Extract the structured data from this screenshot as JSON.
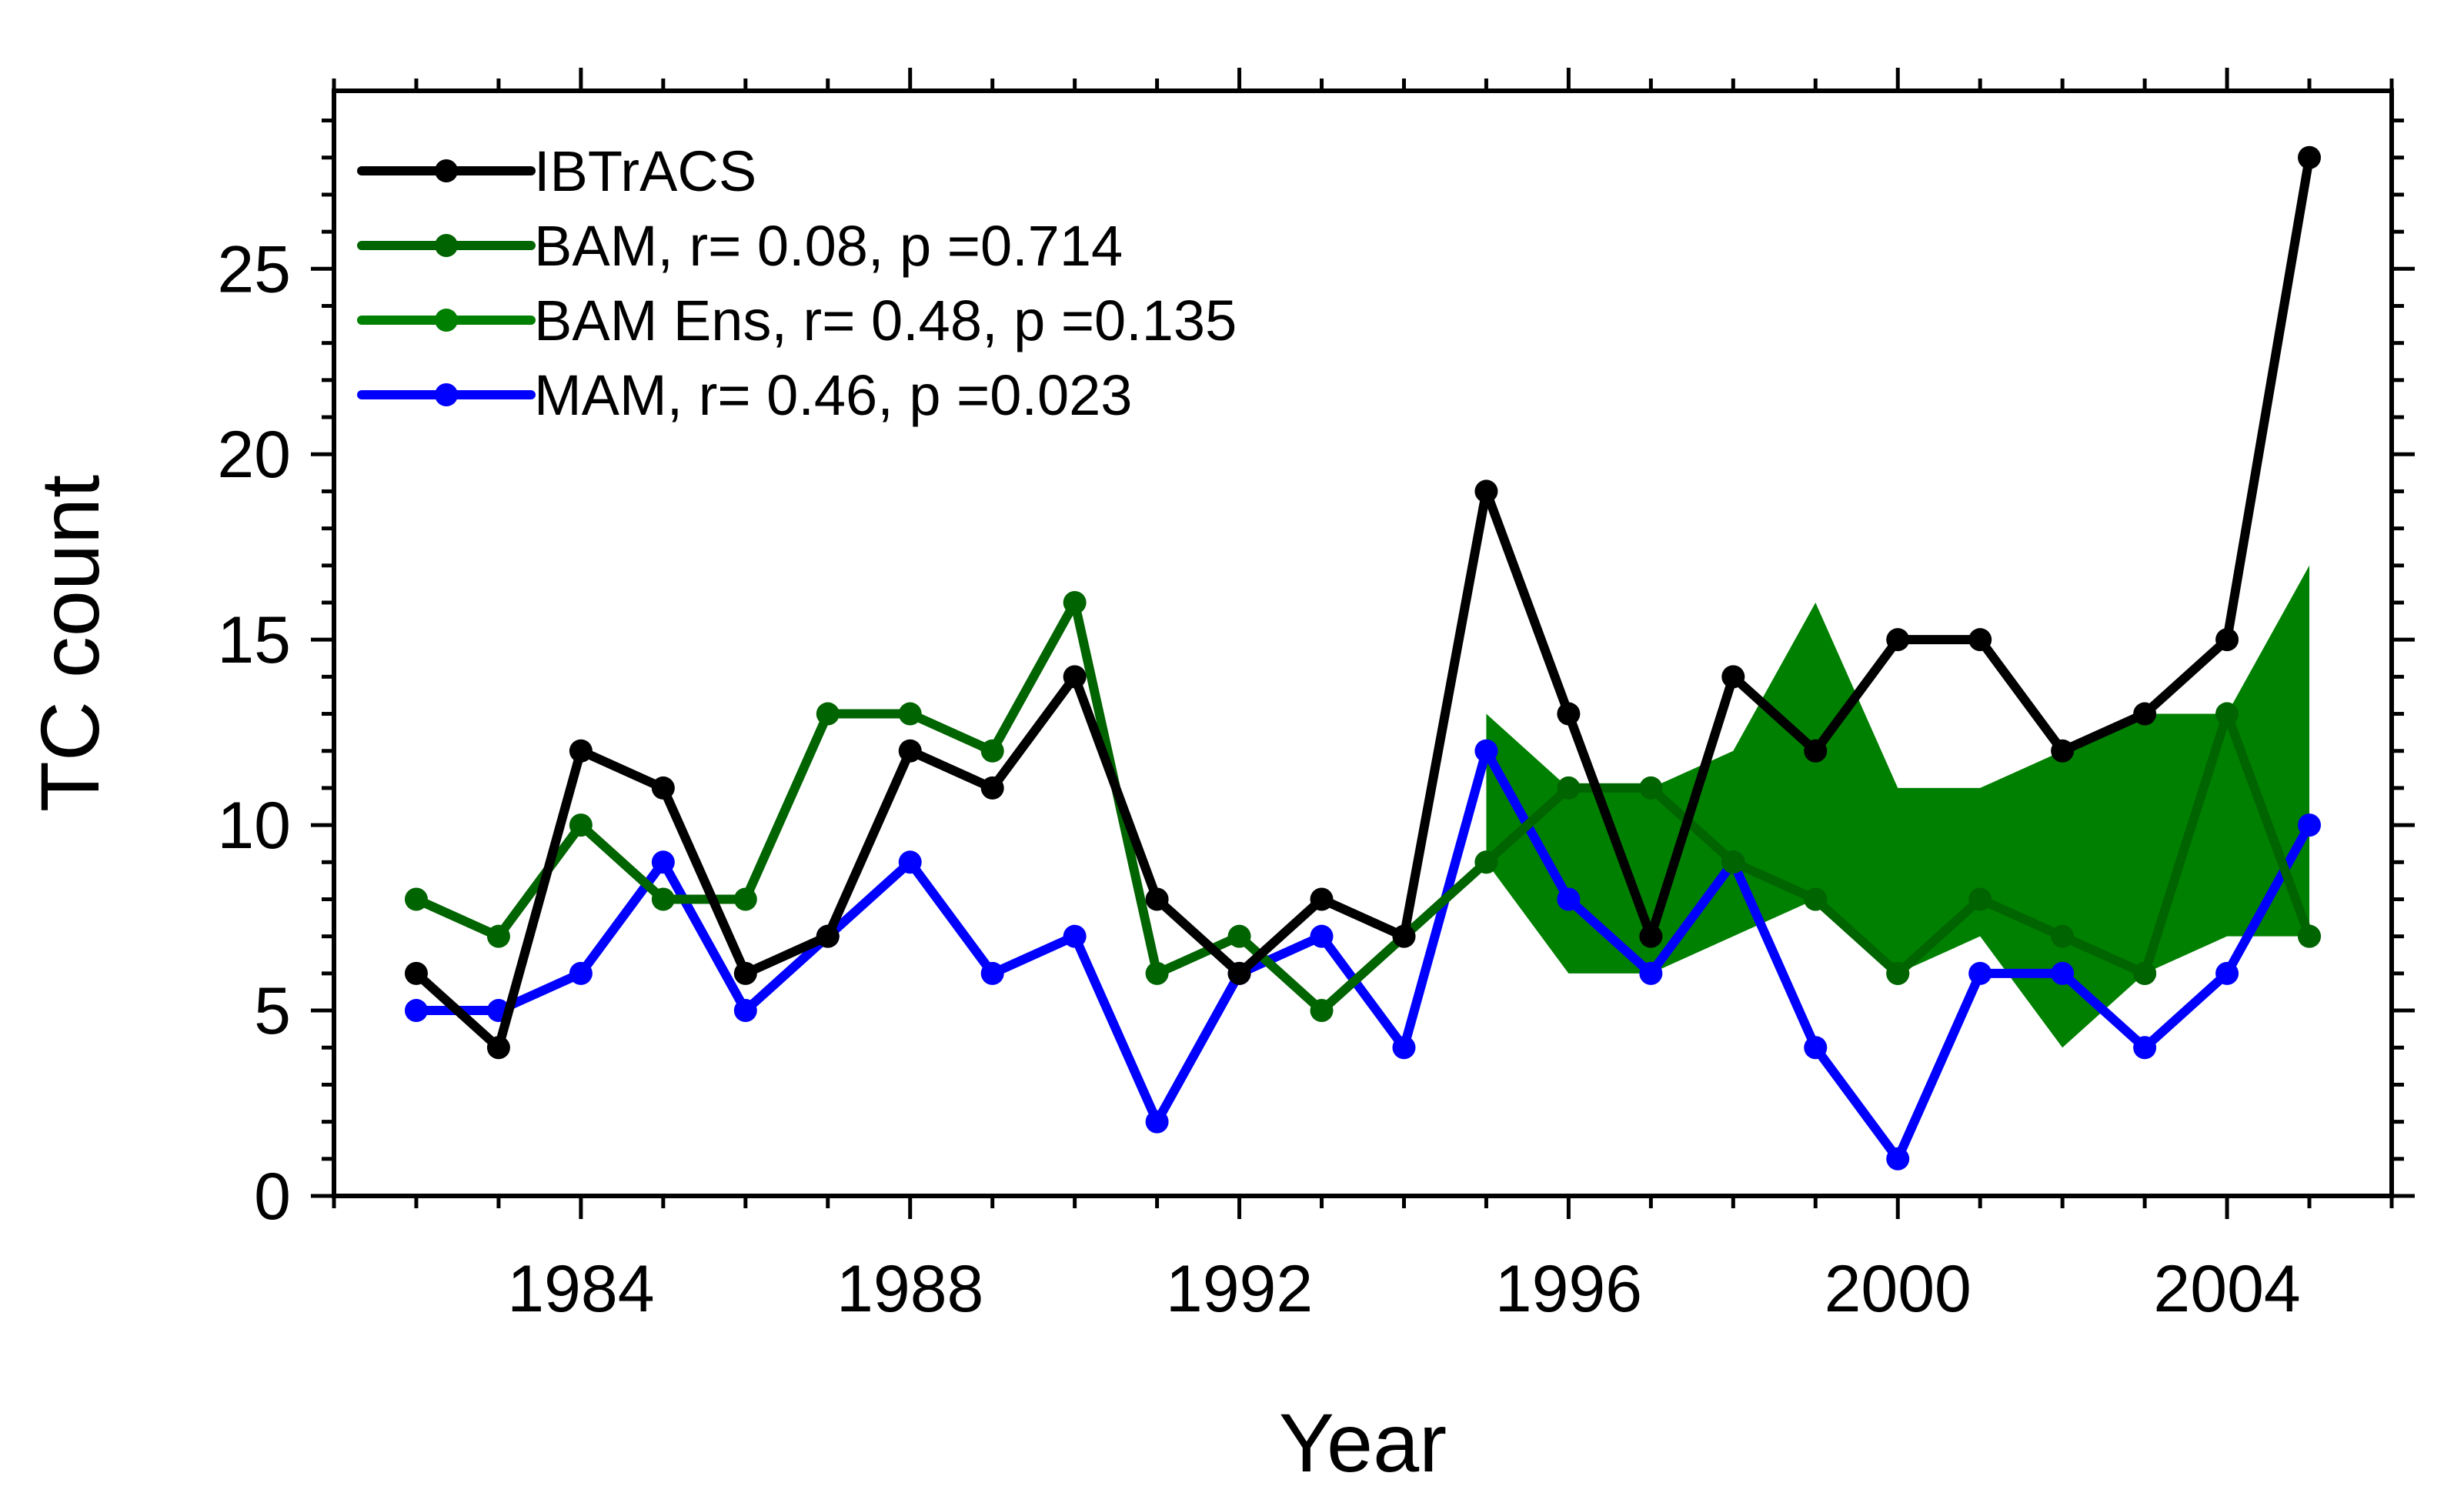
{
  "chart_data": {
    "type": "line",
    "xlabel": "Year",
    "ylabel": "TC count",
    "xlim": [
      1981,
      2006
    ],
    "ylim": [
      0,
      29.8
    ],
    "x_ticks": [
      1984,
      1988,
      1992,
      1996,
      2000,
      2004
    ],
    "y_ticks": [
      0,
      5,
      10,
      15,
      20,
      25
    ],
    "legend_position": "top-left",
    "colors": {
      "IBTrACS": "#000000",
      "BAM": "#006400",
      "BAM Ens": "#008000",
      "MAM": "#0000ff",
      "spread_fill": "#008000"
    },
    "series": [
      {
        "name": "IBTrACS",
        "label": "IBTrACS",
        "x": [
          1982,
          1983,
          1984,
          1985,
          1986,
          1987,
          1988,
          1989,
          1990,
          1991,
          1992,
          1993,
          1994,
          1995,
          1996,
          1997,
          1998,
          1999,
          2000,
          2001,
          2002,
          2003,
          2004,
          2005
        ],
        "values": [
          6,
          4,
          12,
          11,
          6,
          7,
          12,
          11,
          14,
          8,
          6,
          8,
          7,
          19,
          13,
          7,
          14,
          12,
          15,
          15,
          12,
          13,
          15,
          28
        ]
      },
      {
        "name": "BAM",
        "label": "BAM, r= 0.08, p =0.714",
        "x": [
          1982,
          1983,
          1984,
          1985,
          1986,
          1987,
          1988,
          1989,
          1990,
          1991,
          1992,
          1993,
          1994,
          1995,
          1996,
          1997,
          1998,
          1999,
          2000,
          2001,
          2002,
          2003,
          2004,
          2005
        ],
        "values": [
          8,
          7,
          10,
          8,
          8,
          13,
          13,
          12,
          16,
          6,
          7,
          5,
          7,
          9,
          11,
          11,
          9,
          8,
          6,
          8,
          7,
          6,
          13,
          7
        ]
      },
      {
        "name": "BAM Ens",
        "label": "BAM Ens, r= 0.48, p =0.135",
        "x": [
          1995,
          1996,
          1997,
          1998,
          1999,
          2000,
          2001,
          2002,
          2003,
          2004,
          2005
        ],
        "values": [
          9,
          11,
          11,
          9,
          8,
          6,
          8,
          7,
          6,
          13,
          7
        ]
      },
      {
        "name": "MAM",
        "label": "MAM, r= 0.46, p =0.023",
        "x": [
          1982,
          1983,
          1984,
          1985,
          1986,
          1987,
          1988,
          1989,
          1990,
          1991,
          1992,
          1993,
          1994,
          1995,
          1996,
          1997,
          1998,
          1999,
          2000,
          2001,
          2002,
          2003,
          2004,
          2005
        ],
        "values": [
          5,
          5,
          6,
          9,
          5,
          7,
          9,
          6,
          7,
          2,
          6,
          7,
          4,
          12,
          8,
          6,
          9,
          4,
          1,
          6,
          6,
          4,
          6,
          10
        ]
      }
    ],
    "ensemble_spread": {
      "x": [
        1995,
        1996,
        1997,
        1998,
        1999,
        2000,
        2001,
        2002,
        2003,
        2004,
        2005
      ],
      "upper": [
        13,
        11,
        11,
        12,
        16,
        11,
        11,
        12,
        13,
        13,
        17
      ],
      "lower": [
        9,
        6,
        6,
        7,
        8,
        6,
        7,
        4,
        6,
        7,
        7
      ]
    }
  }
}
